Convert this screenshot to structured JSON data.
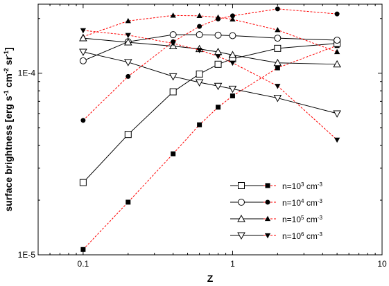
{
  "chart_data": {
    "type": "line",
    "title": "",
    "xlabel": "Z",
    "ylabel_parts": [
      {
        "text": "surface brightness [erg s",
        "sup": false
      },
      {
        "text": "-1",
        "sup": true
      },
      {
        "text": " cm",
        "sup": false
      },
      {
        "text": "-2",
        "sup": true
      },
      {
        "text": " sr",
        "sup": false
      },
      {
        "text": "-1",
        "sup": true
      },
      {
        "text": "]",
        "sup": false
      }
    ],
    "x_scale": "log",
    "y_scale": "log",
    "xlim": [
      0.05,
      10
    ],
    "ylim": [
      1e-05,
      0.00024
    ],
    "x_ticks": [
      {
        "value": 0.1,
        "label": "0.1"
      },
      {
        "value": 1,
        "label": "1"
      },
      {
        "value": 10,
        "label": "10"
      }
    ],
    "y_ticks": [
      {
        "value": 1e-05,
        "label": "1E-5"
      },
      {
        "value": 0.0001,
        "label": "1E-4"
      }
    ],
    "x": [
      0.1,
      0.2,
      0.4,
      0.6,
      0.8,
      1.0,
      2.0,
      5.0
    ],
    "grid": false,
    "legend_position": "bottom-right",
    "series": [
      {
        "legend_parts": [
          {
            "text": "n=10",
            "sup": false
          },
          {
            "text": "3",
            "sup": true
          },
          {
            "text": " cm",
            "sup": false
          },
          {
            "text": "-3",
            "sup": true
          }
        ],
        "open_marker": "square",
        "filled_marker": "square",
        "open_color": "#000000",
        "filled_color": "#ff0000",
        "open_values": [
          2.5e-05,
          4.6e-05,
          7.9e-05,
          9.9e-05,
          0.000112,
          0.00012,
          0.000137,
          0.000146
        ],
        "filled_values": [
          1.07e-05,
          1.95e-05,
          3.6e-05,
          5.2e-05,
          6.5e-05,
          7.5e-05,
          0.000107,
          0.000142
        ]
      },
      {
        "legend_parts": [
          {
            "text": "n=10",
            "sup": false
          },
          {
            "text": "4",
            "sup": true
          },
          {
            "text": " cm",
            "sup": false
          },
          {
            "text": "-3",
            "sup": true
          }
        ],
        "open_marker": "circle",
        "filled_marker": "circle",
        "open_color": "#000000",
        "filled_color": "#ff0000",
        "open_values": [
          0.000117,
          0.000149,
          0.000163,
          0.000163,
          0.000162,
          0.000161,
          0.000156,
          0.000152
        ],
        "filled_values": [
          5.5e-05,
          9.6e-05,
          0.000149,
          0.000181,
          0.000199,
          0.000207,
          0.000226,
          0.000212
        ]
      },
      {
        "legend_parts": [
          {
            "text": "n=10",
            "sup": false
          },
          {
            "text": "5",
            "sup": true
          },
          {
            "text": " cm",
            "sup": false
          },
          {
            "text": "-3",
            "sup": true
          }
        ],
        "open_marker": "triangle-up",
        "filled_marker": "triangle-up",
        "open_color": "#000000",
        "filled_color": "#ff0000",
        "open_values": [
          0.000156,
          0.000148,
          0.000141,
          0.000136,
          0.000131,
          0.000126,
          0.000114,
          0.000112
        ],
        "filled_values": [
          0.000159,
          0.000194,
          0.000208,
          0.000207,
          0.000203,
          0.000198,
          0.000173,
          0.000131
        ]
      },
      {
        "legend_parts": [
          {
            "text": "n=10",
            "sup": false
          },
          {
            "text": "6",
            "sup": true
          },
          {
            "text": " cm",
            "sup": false
          },
          {
            "text": "-3",
            "sup": true
          }
        ],
        "open_marker": "triangle-down",
        "filled_marker": "triangle-down",
        "open_color": "#000000",
        "filled_color": "#ff0000",
        "open_values": [
          0.000131,
          0.000115,
          9.6e-05,
          8.9e-05,
          8.5e-05,
          8.2e-05,
          7.3e-05,
          6e-05
        ],
        "filled_values": [
          0.000172,
          0.000162,
          0.000146,
          0.000134,
          0.000124,
          0.000114,
          8.5e-05,
          4.3e-05
        ]
      }
    ]
  }
}
